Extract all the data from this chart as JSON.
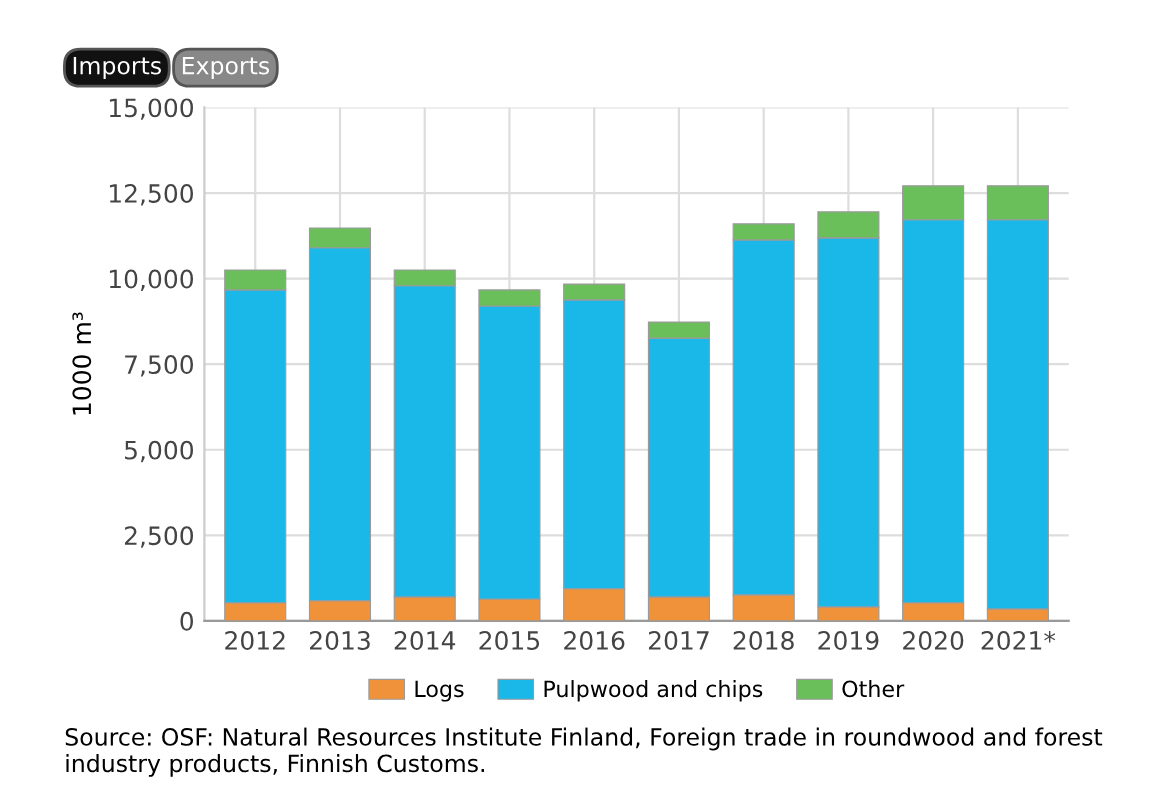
{
  "chart_data": {
    "type": "bar",
    "stacked": true,
    "ylabel": "1000 m³",
    "categories": [
      "2012",
      "2013",
      "2014",
      "2015",
      "2016",
      "2017",
      "2018",
      "2019",
      "2020",
      "2021*"
    ],
    "series": [
      {
        "name": "Logs",
        "color": "#f0923a",
        "values": [
          530,
          590,
          700,
          640,
          940,
          700,
          760,
          410,
          530,
          350
        ]
      },
      {
        "name": "Pulpwood and chips",
        "color": "#1ab8e8",
        "values": [
          9140,
          10310,
          9090,
          8560,
          8440,
          7560,
          10370,
          10780,
          11190,
          11370
        ]
      },
      {
        "name": "Other",
        "color": "#6abf5a",
        "values": [
          580,
          580,
          460,
          470,
          460,
          470,
          470,
          760,
          990,
          990
        ]
      }
    ],
    "ylim": [
      0,
      15000
    ],
    "yticks": [
      {
        "value": 0,
        "label": "0"
      },
      {
        "value": 2500,
        "label": "2,500"
      },
      {
        "value": 5000,
        "label": "5,000"
      },
      {
        "value": 7500,
        "label": "7,500"
      },
      {
        "value": 10000,
        "label": "10,000"
      },
      {
        "value": 12500,
        "label": "12,500"
      },
      {
        "value": 15000,
        "label": "15,000"
      }
    ],
    "grid": true,
    "legend": "bottom",
    "annotations": [
      "Imports",
      "Exports",
      "Source: OSF: Natural Resources Institute Finland, Foreign trade in roundwood and forest industry products, Finnish Customs."
    ]
  }
}
